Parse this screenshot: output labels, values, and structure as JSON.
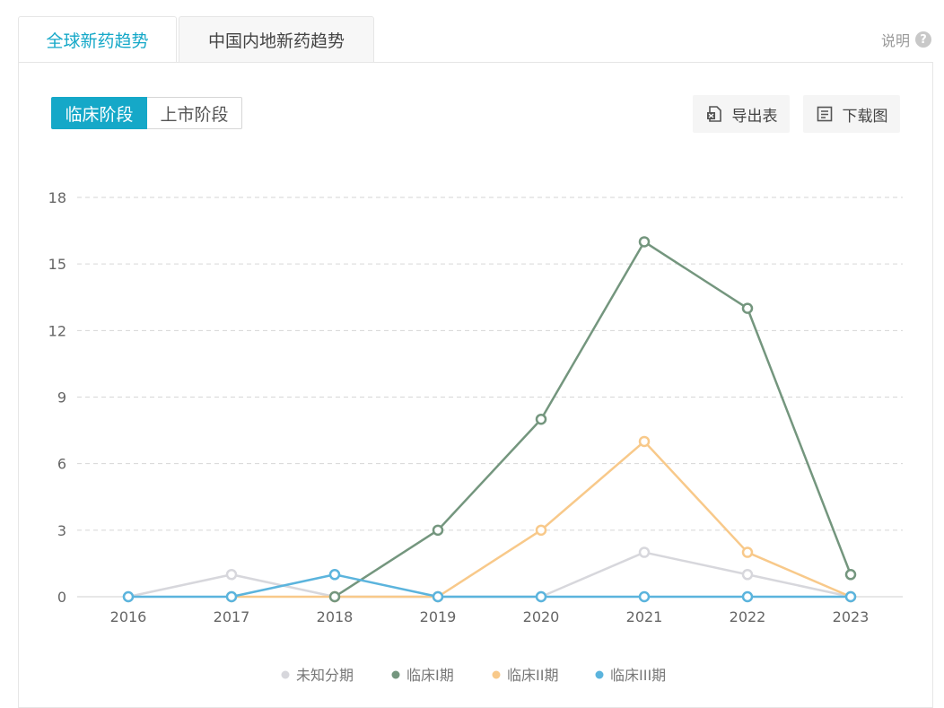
{
  "tabs": {
    "global": "全球新药趋势",
    "china": "中国内地新药趋势"
  },
  "help": {
    "label": "说明",
    "icon": "question-icon"
  },
  "stage_toggle": {
    "clinical": "临床阶段",
    "market": "上市阶段"
  },
  "tools": {
    "export_table": "导出表",
    "download_chart": "下载图"
  },
  "colors": {
    "accent": "#15a8c8"
  },
  "chart_data": {
    "type": "line",
    "x": [
      "2016",
      "2017",
      "2018",
      "2019",
      "2020",
      "2021",
      "2022",
      "2023"
    ],
    "ylim": [
      0,
      18
    ],
    "yticks": [
      0,
      3,
      6,
      9,
      12,
      15,
      18
    ],
    "grid": true,
    "legend_position": "bottom",
    "series": [
      {
        "name": "未知分期",
        "color": "#d7d7dc",
        "values": [
          0,
          1,
          0,
          0,
          0,
          2,
          1,
          0
        ]
      },
      {
        "name": "临床I期",
        "color": "#74967e",
        "values": [
          null,
          null,
          0,
          3,
          8,
          16,
          13,
          1
        ]
      },
      {
        "name": "临床II期",
        "color": "#f8c98a",
        "values": [
          null,
          0,
          0,
          0,
          3,
          7,
          2,
          0
        ]
      },
      {
        "name": "临床III期",
        "color": "#5bb4dd",
        "values": [
          0,
          0,
          1,
          0,
          0,
          0,
          0,
          0
        ]
      }
    ]
  }
}
